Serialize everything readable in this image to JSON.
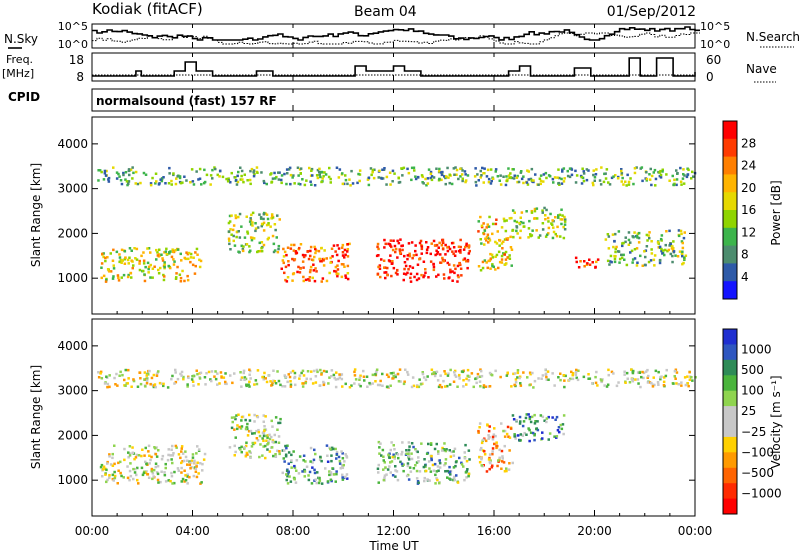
{
  "header": {
    "station": "Kodiak (fitACF)",
    "beam": "Beam 04",
    "date": "01/Sep/2012"
  },
  "top_panels": {
    "nsky_label": "N.Sky",
    "nsky_ticks": [
      "10^5",
      "10^0"
    ],
    "nsearch_label": "N.Search",
    "nsearch_ticks": [
      "10^5",
      "10^0"
    ],
    "freq_label": "Freq.",
    "freq_unit": "[MHz]",
    "freq_ticks": [
      "18",
      "8"
    ],
    "nave_label": "Nave",
    "nave_ticks": [
      "60",
      "0"
    ],
    "cpid_label": "CPID",
    "cpid_value": "normalsound (fast) 157 RF"
  },
  "chart_data": [
    {
      "type": "heatmap",
      "name": "power",
      "ylabel": "Slant Range [km]",
      "ylim": [
        200,
        4600
      ],
      "yticks": [
        "4000",
        "3000",
        "2000",
        "1000"
      ],
      "ytick_values": [
        4000,
        3000,
        2000,
        1000
      ],
      "xlim": [
        0,
        24
      ],
      "colorbar": {
        "label": "Power [dB]",
        "ticks": [
          "28",
          "24",
          "20",
          "16",
          "12",
          "8",
          "4"
        ],
        "colors": [
          "#ff0000",
          "#ff3b00",
          "#ff7f00",
          "#ffb400",
          "#e6d800",
          "#8fd400",
          "#3cb44b",
          "#4c8c6e",
          "#2e5aa8",
          "#1414ff"
        ]
      },
      "echo_bands": [
        {
          "t0": 0.3,
          "t1": 4.3,
          "r0": 950,
          "r1": 1700,
          "level": 0.55
        },
        {
          "t0": 5.4,
          "t1": 7.5,
          "r0": 1600,
          "r1": 2500,
          "level": 0.45
        },
        {
          "t0": 7.5,
          "t1": 10.2,
          "r0": 950,
          "r1": 1800,
          "level": 0.8
        },
        {
          "t0": 11.3,
          "t1": 15.0,
          "r0": 950,
          "r1": 1900,
          "level": 0.95
        },
        {
          "t0": 15.3,
          "t1": 16.7,
          "r0": 1200,
          "r1": 2400,
          "level": 0.6
        },
        {
          "t0": 16.7,
          "t1": 18.8,
          "r0": 1900,
          "r1": 2600,
          "level": 0.45
        },
        {
          "t0": 19.2,
          "t1": 20.3,
          "r0": 1250,
          "r1": 1500,
          "level": 0.85
        },
        {
          "t0": 20.4,
          "t1": 23.6,
          "r0": 1300,
          "r1": 2100,
          "level": 0.4
        },
        {
          "t0": 0.2,
          "t1": 24.0,
          "r0": 3100,
          "r1": 3500,
          "level": 0.35
        }
      ]
    },
    {
      "type": "heatmap",
      "name": "velocity",
      "ylabel": "Slant Range [km]",
      "ylim": [
        200,
        4600
      ],
      "yticks": [
        "4000",
        "3000",
        "2000",
        "1000"
      ],
      "ytick_values": [
        4000,
        3000,
        2000,
        1000
      ],
      "xlim": [
        0,
        24
      ],
      "xticks": [
        "00:00",
        "04:00",
        "08:00",
        "12:00",
        "16:00",
        "20:00",
        "00:00"
      ],
      "xtick_values": [
        0,
        4,
        8,
        12,
        16,
        20,
        24
      ],
      "xlabel": "Time UT",
      "colorbar": {
        "label": "Velocity [m s⁻¹]",
        "ticks": [
          "1000",
          "500",
          "100",
          "25",
          "−25",
          "−100",
          "−500",
          "−1000"
        ],
        "colors": [
          "#1f2fd0",
          "#2f57c0",
          "#2e8b57",
          "#4ab43c",
          "#8fd44f",
          "#c8c8c8",
          "#c8c8c8",
          "#ffd000",
          "#ff9a00",
          "#ff6400",
          "#ff2a00",
          "#ff0000"
        ]
      },
      "echo_bands": [
        {
          "t0": 0.3,
          "t1": 4.5,
          "r0": 950,
          "r1": 1800,
          "level": 0.5
        },
        {
          "t0": 5.4,
          "t1": 7.5,
          "r0": 1500,
          "r1": 2500,
          "level": 0.55
        },
        {
          "t0": 7.5,
          "t1": 10.2,
          "r0": 950,
          "r1": 1800,
          "level": 0.7
        },
        {
          "t0": 11.3,
          "t1": 15.0,
          "r0": 950,
          "r1": 1900,
          "level": 0.65
        },
        {
          "t0": 15.3,
          "t1": 16.7,
          "r0": 1200,
          "r1": 2300,
          "level": 0.35
        },
        {
          "t0": 16.7,
          "t1": 18.8,
          "r0": 1900,
          "r1": 2500,
          "level": 0.75
        },
        {
          "t0": 0.2,
          "t1": 24.0,
          "r0": 3100,
          "r1": 3500,
          "level": 0.5
        }
      ]
    }
  ]
}
